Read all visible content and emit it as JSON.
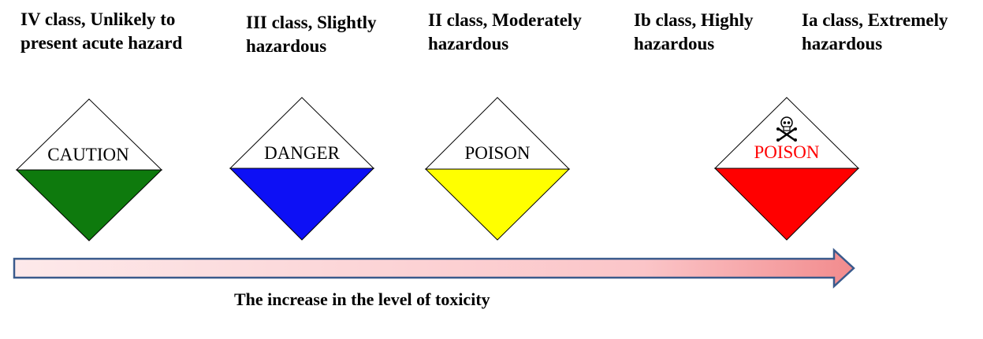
{
  "classes": [
    {
      "label": "IV class, Unlikely to\npresent acute hazard",
      "sign_text": "CAUTION",
      "color": "#0e7a0d",
      "text_color": "#000000",
      "skull": false
    },
    {
      "label": "III class, Slightly\nhazardous",
      "sign_text": "DANGER",
      "color": "#0d10f5",
      "text_color": "#000000",
      "skull": false
    },
    {
      "label": "II class, Moderately\nhazardous",
      "sign_text": "POISON",
      "color": "#ffff00",
      "text_color": "#000000",
      "skull": false
    },
    {
      "label": "Ib class, Highly\nhazardous",
      "sign_text": "",
      "color": "",
      "text_color": "",
      "skull": false
    },
    {
      "label": "Ia class, Extremely\nhazardous",
      "sign_text": "POISON",
      "color": "#ff0000",
      "text_color": "#ff0000",
      "skull": true
    }
  ],
  "arrow": {
    "gradient_start": "#fde9ea",
    "gradient_end": "#f28b8d",
    "border": "#3a5a8c"
  },
  "caption": "The increase in the level of toxicity"
}
